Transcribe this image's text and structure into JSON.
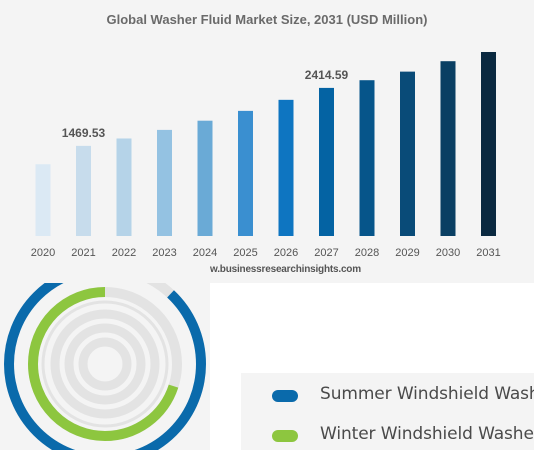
{
  "chart_data": [
    {
      "type": "bar",
      "title": "Global Washer Fluid Market Size, 2031 (USD Million)",
      "categories": [
        "2020",
        "2021",
        "2022",
        "2023",
        "2024",
        "2025",
        "2026",
        "2027",
        "2028",
        "2029",
        "2030",
        "2031"
      ],
      "values": [
        1170,
        1469.53,
        1590,
        1730,
        1880,
        2040,
        2220,
        2414.59,
        2540,
        2680,
        2850,
        3000
      ],
      "data_labels": [
        {
          "category": "2021",
          "text": "1469.53"
        },
        {
          "category": "2027",
          "text": "2414.59"
        }
      ],
      "colors": [
        "#dbe9f4",
        "#c7dcec",
        "#b5d3e8",
        "#94c2e2",
        "#6aaad6",
        "#3a8fd0",
        "#0e75c1",
        "#0463a3",
        "#06558a",
        "#094b78",
        "#0a3f63",
        "#0a2940"
      ],
      "ylim": [
        0,
        3000
      ],
      "grid": false,
      "source_text": "w.businessresearchinsights.com"
    },
    {
      "type": "radial-bar",
      "series": [
        {
          "name": "Summer Windshield Washer",
          "value": 0.88,
          "color": "#0a6aab"
        },
        {
          "name": "Winter Windshield Washer",
          "value": 0.7,
          "color": "#8dc63f"
        }
      ],
      "track_color": "#e3e3e3",
      "legend_position": "bottom-right"
    }
  ]
}
